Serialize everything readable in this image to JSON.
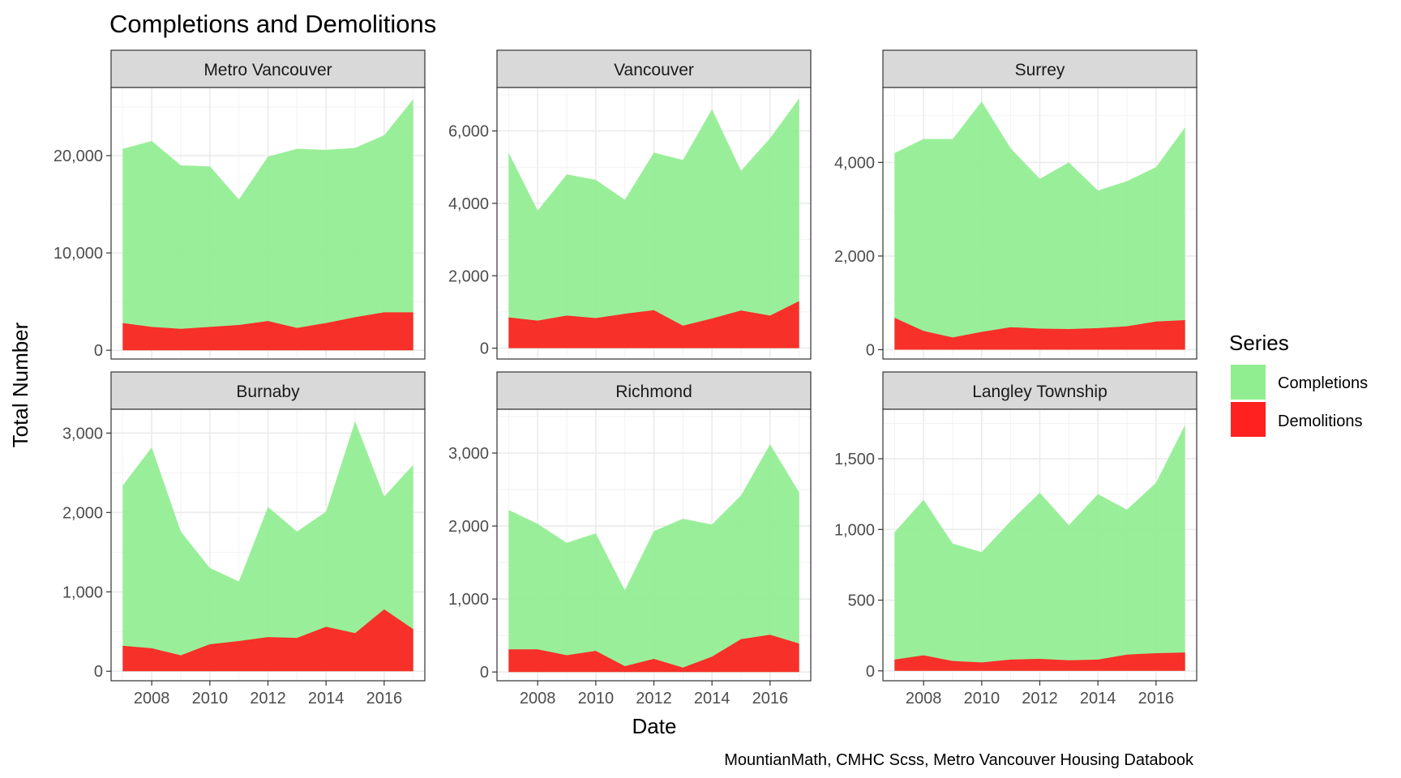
{
  "chart_data": {
    "type": "area",
    "title": "Completions and Demolitions",
    "xlabel": "Date",
    "ylabel": "Total Number",
    "caption": "MountianMath, CMHC Scss, Metro Vancouver Housing Databook",
    "legend": {
      "title": "Series",
      "position": "right",
      "entries": [
        {
          "name": "Completions",
          "color": "#90EE90"
        },
        {
          "name": "Demolitions",
          "color": "#FF2020"
        }
      ]
    },
    "x": [
      2007,
      2008,
      2009,
      2010,
      2011,
      2012,
      2013,
      2014,
      2015,
      2016,
      2017
    ],
    "xlim": [
      2006.6,
      2017.4
    ],
    "xticks": [
      2008,
      2010,
      2012,
      2014,
      2016
    ],
    "panels": [
      {
        "name": "Metro Vancouver",
        "ylim": [
          -900,
          27000
        ],
        "yticks": [
          0,
          10000,
          20000
        ],
        "ytick_labels": [
          "0",
          "10,000",
          "20,000"
        ],
        "series": [
          {
            "name": "Completions",
            "values": [
              20700,
              21500,
              19000,
              18900,
              15500,
              19900,
              20700,
              20600,
              20800,
              22100,
              25800
            ]
          },
          {
            "name": "Demolitions",
            "values": [
              2800,
              2400,
              2200,
              2400,
              2600,
              3000,
              2300,
              2800,
              3400,
              3900,
              3900
            ]
          }
        ]
      },
      {
        "name": "Vancouver",
        "ylim": [
          -300,
          7200
        ],
        "yticks": [
          0,
          2000,
          4000,
          6000
        ],
        "ytick_labels": [
          "0",
          "2,000",
          "4,000",
          "6,000"
        ],
        "series": [
          {
            "name": "Completions",
            "values": [
              5400,
              3800,
              4800,
              4650,
              4100,
              5400,
              5200,
              6600,
              4900,
              5800,
              6900
            ]
          },
          {
            "name": "Demolitions",
            "values": [
              850,
              760,
              900,
              830,
              950,
              1050,
              620,
              820,
              1040,
              900,
              1300
            ]
          }
        ]
      },
      {
        "name": "Surrey",
        "ylim": [
          -200,
          5600
        ],
        "yticks": [
          0,
          2000,
          4000
        ],
        "ytick_labels": [
          "0",
          "2,000",
          "4,000"
        ],
        "series": [
          {
            "name": "Completions",
            "values": [
              4200,
              4500,
              4500,
              5300,
              4300,
              3650,
              4000,
              3400,
              3600,
              3900,
              4750
            ]
          },
          {
            "name": "Demolitions",
            "values": [
              680,
              400,
              260,
              380,
              480,
              450,
              440,
              460,
              500,
              600,
              630
            ]
          }
        ]
      },
      {
        "name": "Burnaby",
        "ylim": [
          -120,
          3300
        ],
        "yticks": [
          0,
          1000,
          2000,
          3000
        ],
        "ytick_labels": [
          "0",
          "1,000",
          "2,000",
          "3,000"
        ],
        "series": [
          {
            "name": "Completions",
            "values": [
              2340,
              2820,
              1760,
              1300,
              1130,
              2070,
              1760,
              2010,
              3150,
              2200,
              2600
            ]
          },
          {
            "name": "Demolitions",
            "values": [
              320,
              290,
              200,
              340,
              380,
              430,
              420,
              560,
              480,
              780,
              530
            ]
          }
        ]
      },
      {
        "name": "Richmond",
        "ylim": [
          -120,
          3600
        ],
        "yticks": [
          0,
          1000,
          2000,
          3000
        ],
        "ytick_labels": [
          "0",
          "1,000",
          "2,000",
          "3,000"
        ],
        "series": [
          {
            "name": "Completions",
            "values": [
              2220,
              2030,
              1770,
              1900,
              1120,
              1930,
              2100,
              2020,
              2420,
              3120,
              2460
            ]
          },
          {
            "name": "Demolitions",
            "values": [
              310,
              310,
              230,
              290,
              80,
              180,
              60,
              210,
              450,
              510,
              390
            ]
          }
        ]
      },
      {
        "name": "Langley Township",
        "ylim": [
          -70,
          1850
        ],
        "yticks": [
          0,
          500,
          1000,
          1500
        ],
        "ytick_labels": [
          "0",
          "500",
          "1,000",
          "1,500"
        ],
        "series": [
          {
            "name": "Completions",
            "values": [
              980,
              1210,
              900,
              840,
              1060,
              1260,
              1030,
              1250,
              1140,
              1330,
              1740
            ]
          },
          {
            "name": "Demolitions",
            "values": [
              80,
              110,
              70,
              60,
              80,
              85,
              75,
              80,
              115,
              125,
              130
            ]
          }
        ]
      }
    ]
  }
}
